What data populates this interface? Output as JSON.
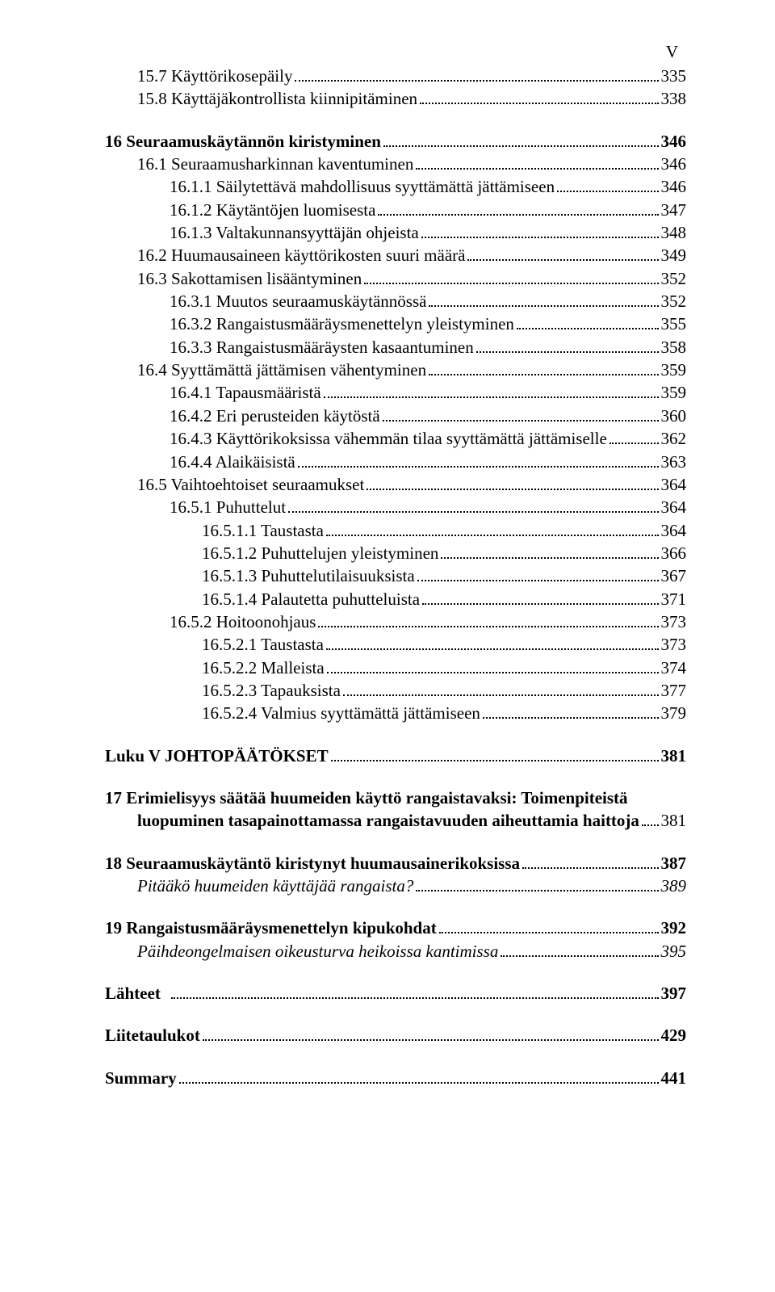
{
  "page_marker": "V",
  "font": {
    "family": "Times New Roman",
    "base_size_pt": 16,
    "color": "#000000",
    "background": "#ffffff"
  },
  "entries": [
    {
      "indent": 1,
      "label": "15.7 Käyttörikosepäily",
      "page": "335"
    },
    {
      "indent": 1,
      "label": "15.8 Käyttäjäkontrollista kiinnipitäminen",
      "page": "338"
    },
    {
      "spacer": true
    },
    {
      "indent": 0,
      "bold": true,
      "label": "16 Seuraamuskäytännön kiristyminen",
      "page": "346"
    },
    {
      "indent": 1,
      "label": "16.1 Seuraamusharkinnan kaventuminen",
      "page": "346"
    },
    {
      "indent": 2,
      "label": "16.1.1 Säilytettävä mahdollisuus syyttämättä jättämiseen",
      "page": "346"
    },
    {
      "indent": 2,
      "label": "16.1.2 Käytäntöjen luomisesta",
      "page": "347"
    },
    {
      "indent": 2,
      "label": "16.1.3 Valtakunnansyyttäjän ohjeista",
      "page": "348"
    },
    {
      "indent": 1,
      "label": "16.2 Huumausaineen käyttörikosten suuri määrä",
      "page": "349"
    },
    {
      "indent": 1,
      "label": "16.3 Sakottamisen lisääntyminen",
      "page": "352"
    },
    {
      "indent": 2,
      "label": "16.3.1 Muutos seuraamuskäytännössä",
      "page": "352"
    },
    {
      "indent": 2,
      "label": "16.3.2 Rangaistusmääräysmenettelyn yleistyminen",
      "page": "355"
    },
    {
      "indent": 2,
      "label": "16.3.3 Rangaistusmääräysten kasaantuminen",
      "page": "358"
    },
    {
      "indent": 1,
      "label": "16.4 Syyttämättä jättämisen vähentyminen",
      "page": "359"
    },
    {
      "indent": 2,
      "label": "16.4.1 Tapausmääristä",
      "page": "359"
    },
    {
      "indent": 2,
      "label": "16.4.2 Eri perusteiden käytöstä",
      "page": "360"
    },
    {
      "indent": 2,
      "label": "16.4.3 Käyttörikoksissa vähemmän tilaa syyttämättä jättämiselle",
      "page": "362"
    },
    {
      "indent": 2,
      "label": "16.4.4 Alaikäisistä",
      "page": "363"
    },
    {
      "indent": 1,
      "label": "16.5 Vaihtoehtoiset seuraamukset",
      "page": "364"
    },
    {
      "indent": 2,
      "label": "16.5.1 Puhuttelut",
      "page": "364"
    },
    {
      "indent": 3,
      "label": "16.5.1.1 Taustasta",
      "page": "364"
    },
    {
      "indent": 3,
      "label": "16.5.1.2 Puhuttelujen yleistyminen",
      "page": "366"
    },
    {
      "indent": 3,
      "label": "16.5.1.3 Puhuttelutilaisuuksista",
      "page": "367"
    },
    {
      "indent": 3,
      "label": "16.5.1.4 Palautetta puhutteluista",
      "page": "371"
    },
    {
      "indent": 2,
      "label": "16.5.2 Hoitoonohjaus",
      "page": "373"
    },
    {
      "indent": 3,
      "label": "16.5.2.1 Taustasta",
      "page": "373"
    },
    {
      "indent": 3,
      "label": "16.5.2.2 Malleista",
      "page": "374"
    },
    {
      "indent": 3,
      "label": "16.5.2.3 Tapauksista",
      "page": "377"
    },
    {
      "indent": 3,
      "label": "16.5.2.4 Valmius syyttämättä jättämiseen",
      "page": "379"
    },
    {
      "spacer": true
    },
    {
      "indent": 0,
      "bold": true,
      "label": "Luku V JOHTOPÄÄTÖKSET",
      "page": "381"
    },
    {
      "spacer": true
    },
    {
      "wrap": true,
      "indent": 0,
      "bold": true,
      "line1": "17 Erimielisyys säätää huumeiden käyttö rangaistavaksi: Toimenpiteistä",
      "line2_indent": 1,
      "line2": "luopuminen tasapainottamassa rangaistavuuden aiheuttamia haittoja",
      "page": "381"
    },
    {
      "spacer": true
    },
    {
      "indent": 0,
      "bold": true,
      "label": "18 Seuraamuskäytäntö kiristynyt huumausainerikoksissa",
      "page": "387"
    },
    {
      "indent": 1,
      "italic": true,
      "label": "Pitääkö huumeiden käyttäjää rangaista?",
      "page": "389"
    },
    {
      "spacer": true
    },
    {
      "indent": 0,
      "bold": true,
      "label": "19 Rangaistusmääräysmenettelyn kipukohdat",
      "page": "392"
    },
    {
      "indent": 1,
      "italic": true,
      "label": "Päihdeongelmaisen oikeusturva heikoissa kantimissa",
      "page": "395"
    },
    {
      "spacer": true
    },
    {
      "indent": 0,
      "bold": true,
      "label": "Lähteet  ",
      "page": "397"
    },
    {
      "spacer": true
    },
    {
      "indent": 0,
      "bold": true,
      "label": "Liitetaulukot",
      "page": "429"
    },
    {
      "spacer": true
    },
    {
      "indent": 0,
      "bold": true,
      "label": "Summary",
      "page": "441"
    }
  ]
}
